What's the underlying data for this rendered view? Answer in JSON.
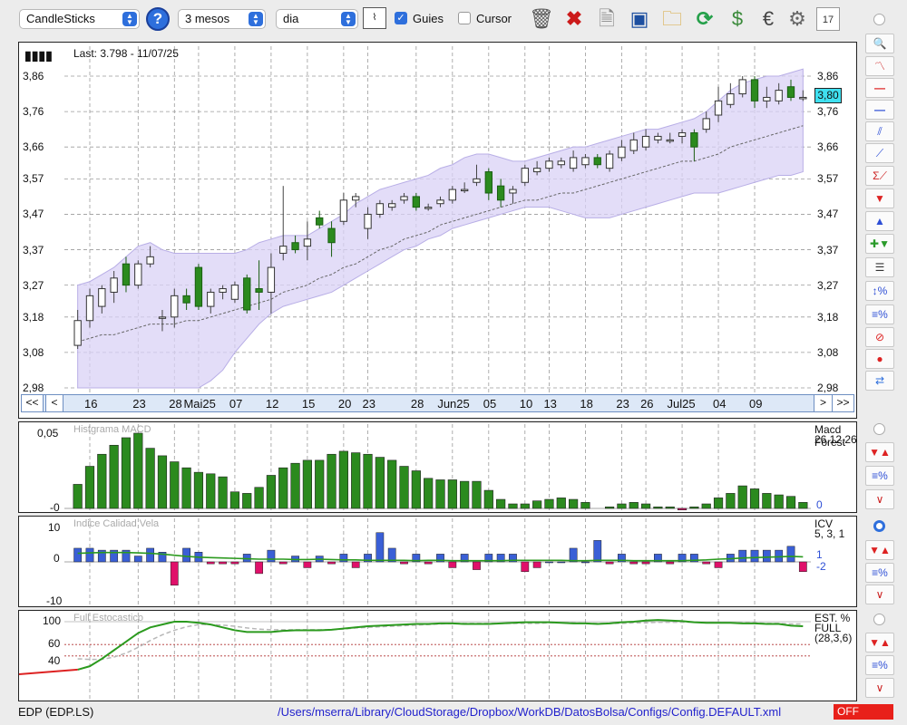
{
  "toolbar": {
    "chart_type": "CandleSticks",
    "period": "3 mesos",
    "interval": "dia",
    "guides_label": "Guies",
    "guides_checked": true,
    "cursor_label": "Cursor",
    "cursor_checked": false,
    "help_label": "?",
    "icons": [
      "chart-window-icon",
      "trash-icon",
      "delete-icon",
      "document-icon",
      "save-icon",
      "folder-icon",
      "refresh-icon",
      "refresh-dollar-icon",
      "euro-icon",
      "gear-icon",
      "calendar-icon"
    ]
  },
  "price_panel": {
    "last_label": "Last: 3.798 - 11/07/25",
    "current_price": "3,80",
    "y_ticks": [
      "3,86",
      "3,76",
      "3,66",
      "3,57",
      "3,47",
      "3,37",
      "3,27",
      "3,18",
      "3,08",
      "2,98"
    ],
    "x_ticks": [
      "16",
      "23",
      "28",
      "Mai25",
      "07",
      "12",
      "15",
      "20",
      "23",
      "28",
      "Jun25",
      "05",
      "10",
      "13",
      "18",
      "23",
      "26",
      "Jul25",
      "04",
      "09"
    ],
    "nav_left": [
      "<<",
      "<"
    ],
    "nav_right": [
      ">",
      ">>"
    ]
  },
  "macd_panel": {
    "title": "Histgrama MACD",
    "y_ticks": [
      "0,05",
      "-0"
    ],
    "label": "Macd Forest",
    "params": "26,12,26",
    "value": "0"
  },
  "icv_panel": {
    "title": "Indice Calidad Vela",
    "y_ticks": [
      "10",
      "0",
      "-10"
    ],
    "label": "ICV",
    "params": "5, 3, 1",
    "value1": "1",
    "value2": "-2"
  },
  "stoch_panel": {
    "title": "Full Estocastico",
    "y_ticks": [
      "100",
      "60",
      "40"
    ],
    "label": "EST. %",
    "label2": "FULL",
    "params": "(28,3,6)"
  },
  "status_bar": {
    "symbol": "EDP (EDP.LS)",
    "path": "/Users/mserra/Library/CloudStorage/Dropbox/WorkDB/DatosBolsa/Configs/Config.DEFAULT.xml",
    "off": "OFF"
  },
  "colors": {
    "up": "#ffffff",
    "down": "#2b8a1e",
    "band": "#d9d2f5",
    "accent": "#2e6fdc",
    "neg": "#e0106a",
    "pos": "#3a5fd6",
    "stoch": "#2b9a1e"
  },
  "chart_data": [
    {
      "type": "candlestick",
      "title": "Last: 3.798 - 11/07/25",
      "ylim": [
        2.98,
        3.86
      ],
      "y_ticks": [
        3.86,
        3.76,
        3.66,
        3.57,
        3.47,
        3.37,
        3.27,
        3.18,
        3.08,
        2.98
      ],
      "x_ticks": [
        "16",
        "23",
        "28",
        "Mai25",
        "07",
        "12",
        "15",
        "20",
        "23",
        "28",
        "Jun25",
        "05",
        "10",
        "13",
        "18",
        "23",
        "26",
        "Jul25",
        "04",
        "09"
      ],
      "candles": [
        {
          "o": 3.1,
          "h": 3.2,
          "l": 3.09,
          "c": 3.17
        },
        {
          "o": 3.17,
          "h": 3.26,
          "l": 3.15,
          "c": 3.24
        },
        {
          "o": 3.21,
          "h": 3.27,
          "l": 3.19,
          "c": 3.26
        },
        {
          "o": 3.25,
          "h": 3.31,
          "l": 3.22,
          "c": 3.29
        },
        {
          "o": 3.33,
          "h": 3.35,
          "l": 3.25,
          "c": 3.27
        },
        {
          "o": 3.27,
          "h": 3.34,
          "l": 3.26,
          "c": 3.33
        },
        {
          "o": 3.33,
          "h": 3.38,
          "l": 3.32,
          "c": 3.35
        },
        {
          "o": 3.18,
          "h": 3.2,
          "l": 3.14,
          "c": 3.18
        },
        {
          "o": 3.18,
          "h": 3.26,
          "l": 3.15,
          "c": 3.24
        },
        {
          "o": 3.24,
          "h": 3.26,
          "l": 3.2,
          "c": 3.22
        },
        {
          "o": 3.32,
          "h": 3.33,
          "l": 3.2,
          "c": 3.21
        },
        {
          "o": 3.21,
          "h": 3.26,
          "l": 3.19,
          "c": 3.25
        },
        {
          "o": 3.25,
          "h": 3.27,
          "l": 3.23,
          "c": 3.26
        },
        {
          "o": 3.23,
          "h": 3.28,
          "l": 3.22,
          "c": 3.27
        },
        {
          "o": 3.29,
          "h": 3.3,
          "l": 3.19,
          "c": 3.2
        },
        {
          "o": 3.26,
          "h": 3.34,
          "l": 3.2,
          "c": 3.25
        },
        {
          "o": 3.25,
          "h": 3.36,
          "l": 3.19,
          "c": 3.32
        },
        {
          "o": 3.36,
          "h": 3.55,
          "l": 3.34,
          "c": 3.38
        },
        {
          "o": 3.39,
          "h": 3.41,
          "l": 3.36,
          "c": 3.37
        },
        {
          "o": 3.38,
          "h": 3.45,
          "l": 3.34,
          "c": 3.4
        },
        {
          "o": 3.46,
          "h": 3.48,
          "l": 3.43,
          "c": 3.44
        },
        {
          "o": 3.43,
          "h": 3.45,
          "l": 3.35,
          "c": 3.39
        },
        {
          "o": 3.45,
          "h": 3.53,
          "l": 3.44,
          "c": 3.51
        },
        {
          "o": 3.51,
          "h": 3.53,
          "l": 3.49,
          "c": 3.52
        },
        {
          "o": 3.43,
          "h": 3.49,
          "l": 3.4,
          "c": 3.47
        },
        {
          "o": 3.47,
          "h": 3.51,
          "l": 3.46,
          "c": 3.5
        },
        {
          "o": 3.49,
          "h": 3.51,
          "l": 3.48,
          "c": 3.5
        },
        {
          "o": 3.51,
          "h": 3.53,
          "l": 3.5,
          "c": 3.52
        },
        {
          "o": 3.52,
          "h": 3.53,
          "l": 3.48,
          "c": 3.49
        },
        {
          "o": 3.49,
          "h": 3.5,
          "l": 3.48,
          "c": 3.49
        },
        {
          "o": 3.5,
          "h": 3.52,
          "l": 3.49,
          "c": 3.51
        },
        {
          "o": 3.51,
          "h": 3.55,
          "l": 3.5,
          "c": 3.54
        },
        {
          "o": 3.54,
          "h": 3.56,
          "l": 3.53,
          "c": 3.54
        },
        {
          "o": 3.56,
          "h": 3.61,
          "l": 3.55,
          "c": 3.57
        },
        {
          "o": 3.59,
          "h": 3.6,
          "l": 3.51,
          "c": 3.53
        },
        {
          "o": 3.55,
          "h": 3.57,
          "l": 3.49,
          "c": 3.51
        },
        {
          "o": 3.53,
          "h": 3.55,
          "l": 3.5,
          "c": 3.54
        },
        {
          "o": 3.56,
          "h": 3.61,
          "l": 3.55,
          "c": 3.6
        },
        {
          "o": 3.59,
          "h": 3.62,
          "l": 3.58,
          "c": 3.6
        },
        {
          "o": 3.6,
          "h": 3.63,
          "l": 3.59,
          "c": 3.62
        },
        {
          "o": 3.61,
          "h": 3.63,
          "l": 3.6,
          "c": 3.62
        },
        {
          "o": 3.6,
          "h": 3.65,
          "l": 3.59,
          "c": 3.63
        },
        {
          "o": 3.61,
          "h": 3.64,
          "l": 3.6,
          "c": 3.63
        },
        {
          "o": 3.63,
          "h": 3.64,
          "l": 3.6,
          "c": 3.61
        },
        {
          "o": 3.6,
          "h": 3.65,
          "l": 3.59,
          "c": 3.64
        },
        {
          "o": 3.63,
          "h": 3.68,
          "l": 3.62,
          "c": 3.66
        },
        {
          "o": 3.65,
          "h": 3.7,
          "l": 3.64,
          "c": 3.68
        },
        {
          "o": 3.66,
          "h": 3.71,
          "l": 3.65,
          "c": 3.69
        },
        {
          "o": 3.68,
          "h": 3.7,
          "l": 3.67,
          "c": 3.69
        },
        {
          "o": 3.68,
          "h": 3.7,
          "l": 3.67,
          "c": 3.68
        },
        {
          "o": 3.69,
          "h": 3.71,
          "l": 3.67,
          "c": 3.7
        },
        {
          "o": 3.7,
          "h": 3.71,
          "l": 3.62,
          "c": 3.66
        },
        {
          "o": 3.71,
          "h": 3.76,
          "l": 3.7,
          "c": 3.74
        },
        {
          "o": 3.75,
          "h": 3.83,
          "l": 3.73,
          "c": 3.79
        },
        {
          "o": 3.78,
          "h": 3.84,
          "l": 3.77,
          "c": 3.81
        },
        {
          "o": 3.81,
          "h": 3.86,
          "l": 3.8,
          "c": 3.85
        },
        {
          "o": 3.85,
          "h": 3.86,
          "l": 3.77,
          "c": 3.79
        },
        {
          "o": 3.79,
          "h": 3.83,
          "l": 3.77,
          "c": 3.8
        },
        {
          "o": 3.79,
          "h": 3.84,
          "l": 3.78,
          "c": 3.82
        },
        {
          "o": 3.83,
          "h": 3.85,
          "l": 3.79,
          "c": 3.8
        },
        {
          "o": 3.8,
          "h": 3.82,
          "l": 3.79,
          "c": 3.8
        }
      ],
      "band_upper": [
        3.27,
        3.28,
        3.3,
        3.32,
        3.35,
        3.38,
        3.39,
        3.37,
        3.36,
        3.36,
        3.36,
        3.36,
        3.36,
        3.36,
        3.37,
        3.39,
        3.4,
        3.41,
        3.41,
        3.41,
        3.43,
        3.45,
        3.47,
        3.5,
        3.52,
        3.54,
        3.55,
        3.56,
        3.57,
        3.58,
        3.6,
        3.61,
        3.63,
        3.64,
        3.64,
        3.63,
        3.62,
        3.62,
        3.63,
        3.64,
        3.65,
        3.66,
        3.66,
        3.67,
        3.68,
        3.69,
        3.7,
        3.71,
        3.71,
        3.72,
        3.73,
        3.74,
        3.76,
        3.79,
        3.82,
        3.84,
        3.85,
        3.86,
        3.86,
        3.87,
        3.88
      ],
      "band_lower": [
        2.98,
        2.98,
        2.98,
        2.98,
        2.98,
        2.98,
        2.98,
        2.98,
        2.98,
        2.98,
        2.98,
        3.0,
        3.03,
        3.08,
        3.12,
        3.16,
        3.19,
        3.21,
        3.22,
        3.23,
        3.24,
        3.25,
        3.27,
        3.29,
        3.31,
        3.33,
        3.35,
        3.37,
        3.38,
        3.4,
        3.41,
        3.43,
        3.44,
        3.45,
        3.46,
        3.47,
        3.48,
        3.49,
        3.49,
        3.49,
        3.48,
        3.47,
        3.46,
        3.46,
        3.46,
        3.47,
        3.48,
        3.49,
        3.5,
        3.51,
        3.52,
        3.53,
        3.53,
        3.53,
        3.54,
        3.55,
        3.56,
        3.57,
        3.58,
        3.58,
        3.59
      ],
      "moving_average": [
        3.11,
        3.12,
        3.13,
        3.13,
        3.14,
        3.15,
        3.16,
        3.16,
        3.16,
        3.17,
        3.17,
        3.18,
        3.19,
        3.2,
        3.21,
        3.22,
        3.23,
        3.25,
        3.26,
        3.27,
        3.29,
        3.3,
        3.32,
        3.33,
        3.35,
        3.37,
        3.38,
        3.4,
        3.41,
        3.42,
        3.44,
        3.45,
        3.46,
        3.47,
        3.48,
        3.49,
        3.5,
        3.51,
        3.51,
        3.52,
        3.53,
        3.53,
        3.54,
        3.55,
        3.56,
        3.57,
        3.58,
        3.59,
        3.6,
        3.61,
        3.62,
        3.62,
        3.63,
        3.64,
        3.66,
        3.67,
        3.68,
        3.69,
        3.7,
        3.71,
        3.72
      ]
    },
    {
      "type": "bar",
      "title": "Histgrama MACD",
      "ylim": [
        -0.005,
        0.055
      ],
      "values": [
        0.016,
        0.028,
        0.036,
        0.042,
        0.047,
        0.05,
        0.04,
        0.035,
        0.031,
        0.027,
        0.024,
        0.023,
        0.021,
        0.011,
        0.01,
        0.014,
        0.022,
        0.027,
        0.03,
        0.032,
        0.032,
        0.036,
        0.038,
        0.037,
        0.036,
        0.034,
        0.032,
        0.028,
        0.025,
        0.02,
        0.019,
        0.019,
        0.018,
        0.018,
        0.012,
        0.006,
        0.003,
        0.003,
        0.005,
        0.006,
        0.007,
        0.006,
        0.004,
        0,
        0.001,
        0.003,
        0.004,
        0.003,
        0.001,
        0.001,
        -0.001,
        0.001,
        0.003,
        0.007,
        0.01,
        0.015,
        0.013,
        0.01,
        0.009,
        0.008,
        0.004
      ]
    },
    {
      "type": "bar",
      "title": "Indice Calidad Vela",
      "ylim": [
        -10,
        10
      ],
      "values": [
        3.5,
        3.5,
        3,
        3,
        3,
        1.5,
        3.5,
        2.5,
        -6,
        3.5,
        2.5,
        -0.5,
        -0.5,
        -0.5,
        2,
        -3,
        3,
        -0.5,
        1.5,
        -1.5,
        1.5,
        -0.5,
        2,
        -1.5,
        2,
        7.5,
        3.5,
        -0.5,
        2,
        -0.5,
        2,
        -1.5,
        2,
        -2,
        2,
        2,
        2,
        -2.5,
        -1.5,
        0,
        0,
        3.5,
        0,
        5.5,
        -0.5,
        2,
        -0.5,
        -0.5,
        2,
        -0.5,
        2,
        2,
        -0.5,
        -1.5,
        2,
        3,
        3,
        3,
        3,
        4,
        -2.5
      ],
      "signal": [
        2.2,
        2.3,
        2.4,
        2.4,
        2.4,
        2.3,
        2.2,
        2.0,
        1.7,
        1.4,
        1.2,
        1.1,
        1.0,
        0.9,
        0.8,
        0.7,
        0.7,
        0.7,
        0.6,
        0.6,
        0.7,
        0.6,
        0.5,
        0.5,
        0.4,
        0.4,
        0.4,
        0.4,
        0.3,
        0.4,
        0.4,
        0.3,
        0.3,
        0.3,
        0.3,
        0.3,
        0.4,
        0.4,
        0.4,
        0.4,
        0.4,
        0.3,
        0.3,
        0.4,
        0.4,
        0.4,
        0.3,
        0.3,
        0.3,
        0.3,
        0.3,
        0.4,
        0.5,
        0.7,
        0.8,
        1.0,
        1.1,
        1.2,
        1.3,
        1.4,
        1.3
      ]
    },
    {
      "type": "line",
      "title": "Full Estocastico",
      "ylim": [
        20,
        100
      ],
      "series": [
        {
          "values": [
            16,
            22,
            35,
            50,
            65,
            80,
            90,
            95,
            100,
            100,
            98,
            95,
            90,
            85,
            82,
            82,
            82,
            84,
            85,
            85,
            85,
            86,
            88,
            90,
            92,
            93,
            94,
            95,
            96,
            96,
            97,
            97,
            96,
            96,
            96,
            97,
            98,
            99,
            99,
            99,
            98,
            97,
            97,
            96,
            97,
            99,
            100,
            102,
            103,
            102,
            101,
            99,
            98,
            98,
            98,
            97,
            97,
            96,
            96,
            93,
            92
          ]
        },
        {
          "values": [
            35,
            34,
            34,
            38,
            45,
            55,
            67,
            77,
            85,
            91,
            95,
            95,
            94,
            92,
            89,
            87,
            86,
            86,
            86,
            86,
            86,
            86,
            87,
            89,
            90,
            91,
            92,
            93,
            94,
            95,
            96,
            97,
            97,
            97,
            97,
            97,
            97,
            97,
            97,
            98,
            98,
            98,
            97,
            97,
            97,
            97,
            98,
            98,
            99,
            99,
            99,
            99,
            99,
            99,
            98,
            98,
            98,
            97,
            97,
            96,
            96
          ]
        }
      ]
    }
  ]
}
